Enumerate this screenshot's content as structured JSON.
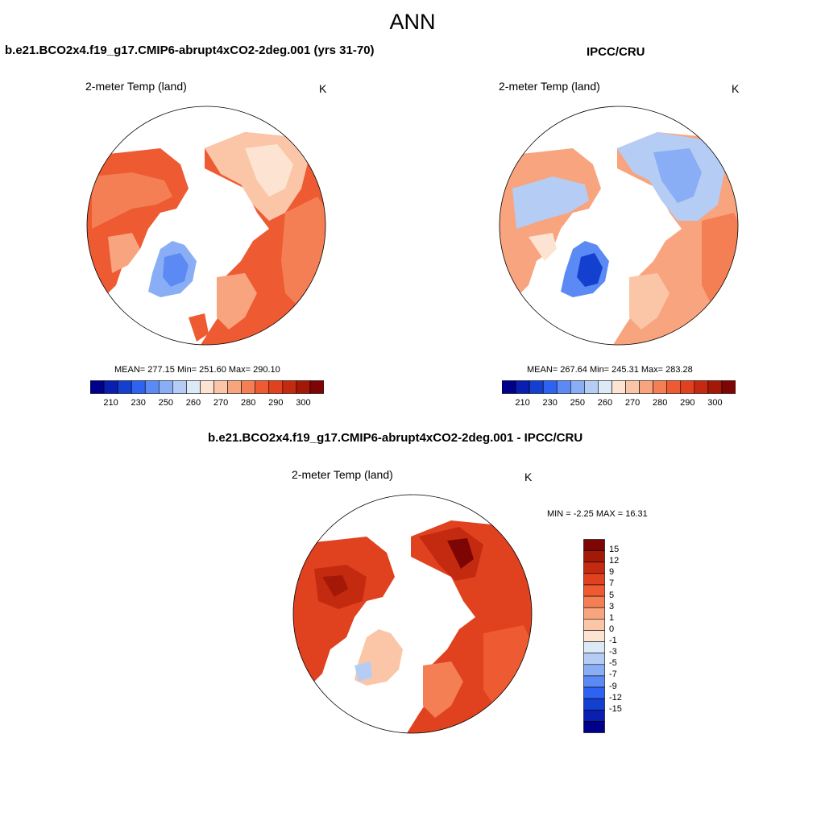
{
  "main_title": "ANN",
  "panels": [
    {
      "title": "b.e21.BCO2x4.f19_g17.CMIP6-abrupt4xCO2-2deg.001 (yrs 31-70)",
      "variable": "2-meter Temp (land)",
      "units": "K",
      "stats": "MEAN= 277.15  Min= 251.60  Max= 290.10"
    },
    {
      "title": "IPCC/CRU",
      "variable": "2-meter Temp (land)",
      "units": "K",
      "stats": "MEAN= 267.64  Min= 245.31  Max= 283.28"
    },
    {
      "title": "b.e21.BCO2x4.f19_g17.CMIP6-abrupt4xCO2-2deg.001 - IPCC/CRU",
      "variable": "2-meter Temp (land)",
      "units": "K",
      "stats": "MIN =  -2.25 MAX =  16.31"
    }
  ],
  "colorbar_abs": {
    "colors": [
      "#00008b",
      "#0a1fb0",
      "#1440d0",
      "#2e62f0",
      "#5b8af5",
      "#8aaef5",
      "#b5cdf5",
      "#dce9f7",
      "#fde4d2",
      "#fbc6a8",
      "#f8a47e",
      "#f47f55",
      "#ee5a32",
      "#e0411e",
      "#c42a10",
      "#a41808",
      "#7d0604"
    ],
    "tick_labels": [
      "210",
      "230",
      "250",
      "260",
      "270",
      "280",
      "290",
      "300"
    ]
  },
  "colorbar_diff": {
    "colors": [
      "#00008b",
      "#0a1fb0",
      "#1440d0",
      "#2e62f0",
      "#5b8af5",
      "#8aaef5",
      "#b5cdf5",
      "#dce9f7",
      "#fde4d2",
      "#fbc6a8",
      "#f8a47e",
      "#f47f55",
      "#ee5a32",
      "#e0411e",
      "#c42a10",
      "#a41808",
      "#7d0604"
    ],
    "tick_labels": [
      "15",
      "12",
      "9",
      "7",
      "5",
      "3",
      "1",
      "0",
      "-1",
      "-3",
      "-5",
      "-7",
      "-9",
      "-12",
      "-15"
    ]
  }
}
